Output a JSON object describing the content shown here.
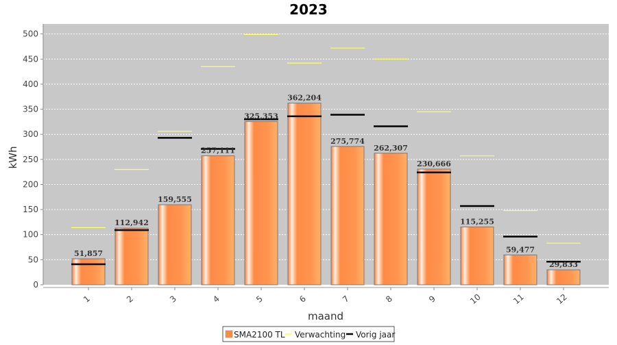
{
  "chart_data": {
    "type": "bar",
    "title": "2023",
    "xlabel": "maand",
    "ylabel": "kWh",
    "ylim": [
      0,
      520
    ],
    "yticks": [
      0,
      50,
      100,
      150,
      200,
      250,
      300,
      350,
      400,
      450,
      500
    ],
    "grid": true,
    "legend_position": "bottom",
    "categories": [
      "1",
      "2",
      "3",
      "4",
      "5",
      "6",
      "7",
      "8",
      "9",
      "10",
      "11",
      "12"
    ],
    "series": [
      {
        "name": "SMA2100 TL",
        "kind": "bar",
        "color": "#ff8c42",
        "values": [
          51.857,
          112.942,
          159.555,
          257.111,
          325.353,
          362.204,
          275.774,
          262.307,
          230.666,
          115.255,
          59.477,
          29.833
        ],
        "labels": [
          "51,857",
          "112,942",
          "159,555",
          "257,111",
          "325,353",
          "362,204",
          "275,774",
          "262,307",
          "230,666",
          "115,255",
          "59,477",
          "29,833"
        ]
      },
      {
        "name": "Verwachting",
        "kind": "level",
        "color": "#ffff66",
        "values": [
          114,
          230,
          306,
          435,
          499,
          442,
          472,
          450,
          345,
          257,
          148,
          83
        ]
      },
      {
        "name": "Vorig jaar",
        "kind": "level",
        "color": "#000000",
        "values": [
          41,
          109,
          293,
          271,
          330,
          336,
          339,
          316,
          224,
          157,
          96,
          46
        ]
      }
    ]
  }
}
